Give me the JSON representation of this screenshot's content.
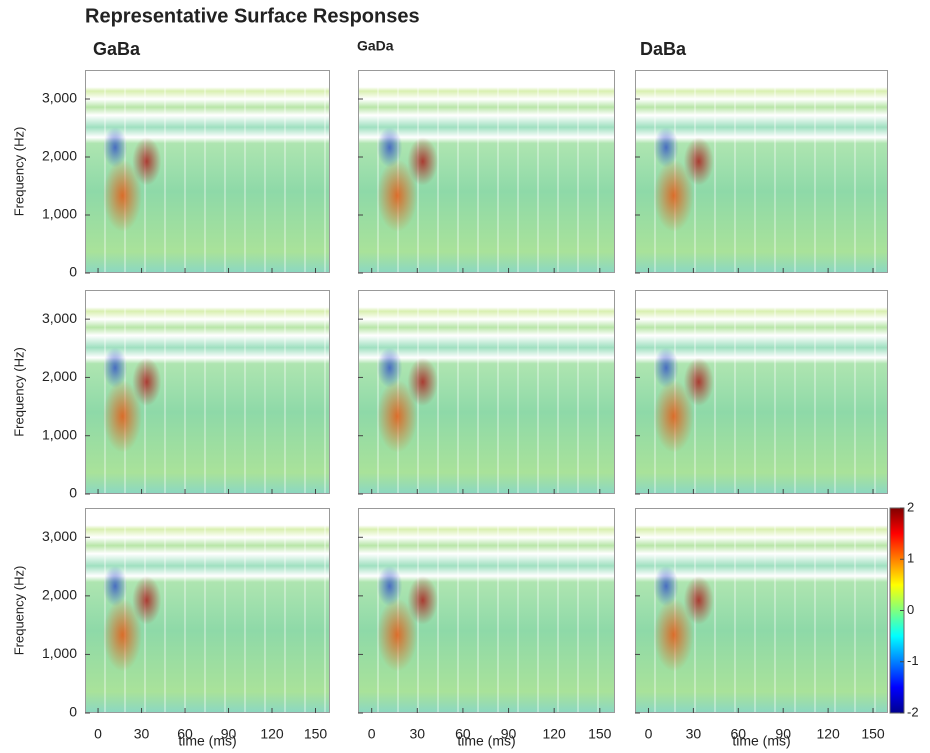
{
  "chart_data": {
    "type": "heatmap",
    "title": "Representative Surface Responses",
    "columns": [
      "GaBa",
      "GaDa",
      "DaBa"
    ],
    "ylabel": "Frequency (Hz)",
    "xlabel": "time (ms)",
    "xlim": [
      -9,
      160
    ],
    "xticks": [
      0,
      30,
      60,
      90,
      120,
      150
    ],
    "ylim": [
      0,
      3500
    ],
    "yticks": [
      0,
      {
        "value": 1000,
        "label": "1,000"
      },
      {
        "value": 2000,
        "label": "2,000"
      },
      {
        "value": 3000,
        "label": "3,000"
      }
    ],
    "zlim": [
      -2,
      2
    ],
    "zticks": [
      2,
      1,
      0,
      -1,
      -2
    ]
  }
}
